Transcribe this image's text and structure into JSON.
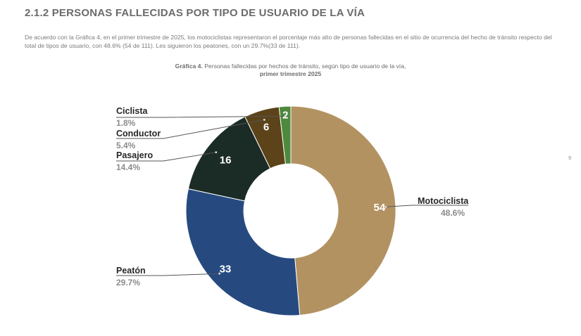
{
  "section": {
    "title": "2.1.2 PERSONAS FALLECIDAS POR TIPO DE USUARIO DE LA VÍA",
    "paragraph": "De acuerdo con la Gráfica 4, en el primer trimestre de 2025, los motociclistas representaron el porcentaje más alto de personas fallecidas en el sitio de ocurrencia del hecho de tránsito respecto del total de tipos de usuario, con 48.6% (54 de 111). Les siguieron los peatones, con un 29.7%(33 de 111)."
  },
  "caption": {
    "label": "Gráfica 4.",
    "text": " Personas fallecidas por hechos de tránsito, según tipo de usuario de la vía,",
    "line2": "primer trimestre 2025"
  },
  "page_number": "9",
  "chart_data": {
    "type": "pie",
    "donut": true,
    "title": "Personas fallecidas por hechos de tránsito, según tipo de usuario de la vía, primer trimestre 2025",
    "total": 111,
    "slices": [
      {
        "label": "Motociclista",
        "value": 54,
        "percent": "48.6%",
        "color": "#b39262"
      },
      {
        "label": "Peatón",
        "value": 33,
        "percent": "29.7%",
        "color": "#264a80"
      },
      {
        "label": "Pasajero",
        "value": 16,
        "percent": "14.4%",
        "color": "#1b2c26"
      },
      {
        "label": "Conductor",
        "value": 6,
        "percent": "5.4%",
        "color": "#5c4319"
      },
      {
        "label": "Ciclista",
        "value": 2,
        "percent": "1.8%",
        "color": "#4d8a3c"
      }
    ]
  }
}
